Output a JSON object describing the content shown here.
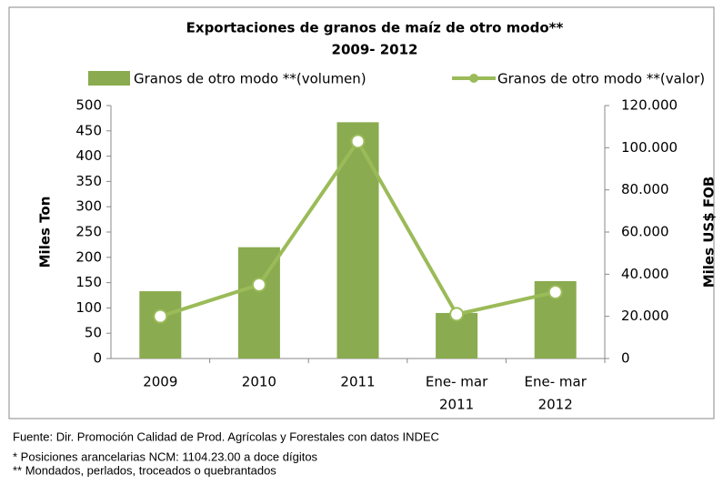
{
  "chart_data": {
    "type": "bar",
    "title": [
      "Exportaciones de granos de maíz de otro modo**",
      "2009- 2012"
    ],
    "categories": [
      "2009",
      "2010",
      "2011",
      [
        "Ene- mar",
        "2011"
      ],
      [
        "Ene- mar",
        "2012"
      ]
    ],
    "series": [
      {
        "name": "Granos de otro modo **(volumen)",
        "type": "bar",
        "color": "#8aab4f",
        "values": [
          133,
          220,
          467,
          90,
          153
        ]
      },
      {
        "name": "Granos de otro modo **(valor)",
        "type": "line",
        "axis": "y2",
        "color": "#9bbb59",
        "values": [
          20000,
          35000,
          103000,
          21000,
          31500
        ]
      }
    ],
    "ylabel": "Miles Ton",
    "y2label": "Miles US$ FOB",
    "ylim": [
      0,
      500
    ],
    "yticks": [
      0,
      50,
      100,
      150,
      200,
      250,
      300,
      350,
      400,
      450,
      500
    ],
    "y2lim": [
      0,
      120000
    ],
    "y2ticks": [
      0,
      {
        "value": 20000,
        "label": "20.000"
      },
      {
        "value": 40000,
        "label": "40.000"
      },
      {
        "value": 60000,
        "label": "60.000"
      },
      {
        "value": 80000,
        "label": "80.000"
      },
      {
        "value": 100000,
        "label": "100.000"
      },
      {
        "value": 120000,
        "label": "120.000"
      }
    ],
    "notes": [
      "Fuente: Dir. Promoción Calidad de Prod. Agrícolas y Forestales con datos INDEC",
      "* Posiciones arancelarias NCM: 1104.23.00 a doce dígitos",
      "** Mondados, perlados, troceados o quebrantados"
    ]
  }
}
